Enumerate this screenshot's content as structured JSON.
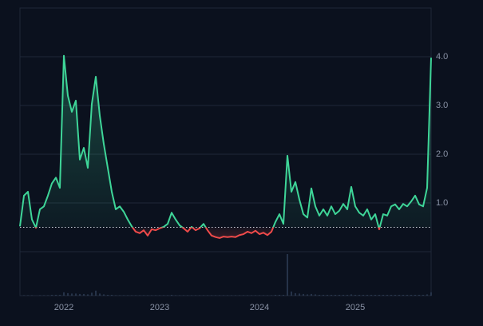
{
  "chart_data": {
    "type": "line",
    "categories": [
      null,
      null,
      null,
      null,
      null,
      null,
      null,
      null,
      null,
      null,
      null,
      "2022",
      null,
      null,
      null,
      null,
      null,
      null,
      null,
      null,
      null,
      null,
      null,
      null,
      null,
      null,
      null,
      null,
      null,
      null,
      null,
      null,
      null,
      null,
      null,
      "2023",
      null,
      null,
      null,
      null,
      null,
      null,
      null,
      null,
      null,
      null,
      null,
      null,
      null,
      null,
      null,
      null,
      null,
      null,
      null,
      null,
      null,
      null,
      null,
      null,
      "2024",
      null,
      null,
      null,
      null,
      null,
      null,
      null,
      null,
      null,
      null,
      null,
      null,
      null,
      null,
      null,
      null,
      null,
      null,
      null,
      null,
      null,
      null,
      null,
      "2025",
      null,
      null,
      null,
      null,
      null,
      null,
      null,
      null,
      null,
      null,
      null,
      null,
      null,
      null,
      null,
      null,
      null,
      null,
      null
    ],
    "values": [
      0.52,
      1.15,
      1.23,
      0.66,
      0.49,
      0.87,
      0.93,
      1.15,
      1.4,
      1.52,
      1.31,
      4.02,
      3.2,
      2.87,
      3.1,
      1.89,
      2.13,
      1.72,
      3.03,
      3.59,
      2.79,
      2.21,
      1.72,
      1.23,
      0.87,
      0.93,
      0.82,
      0.66,
      0.52,
      0.41,
      0.38,
      0.44,
      0.33,
      0.46,
      0.44,
      0.48,
      0.51,
      0.57,
      0.8,
      0.66,
      0.54,
      0.48,
      0.41,
      0.51,
      0.44,
      0.48,
      0.57,
      0.44,
      0.33,
      0.3,
      0.28,
      0.31,
      0.3,
      0.31,
      0.3,
      0.34,
      0.36,
      0.41,
      0.38,
      0.43,
      0.36,
      0.39,
      0.34,
      0.41,
      0.61,
      0.77,
      0.57,
      1.97,
      1.23,
      1.43,
      1.07,
      0.77,
      0.7,
      1.3,
      0.93,
      0.74,
      0.87,
      0.74,
      0.93,
      0.77,
      0.84,
      0.98,
      0.87,
      1.33,
      0.93,
      0.8,
      0.74,
      0.87,
      0.66,
      0.77,
      0.46,
      0.77,
      0.74,
      0.93,
      0.97,
      0.87,
      0.98,
      0.93,
      1.03,
      1.15,
      0.97,
      0.93,
      1.31,
      3.98
    ],
    "volume": [
      0,
      1,
      1,
      1,
      0,
      1,
      1,
      1,
      2,
      2,
      2,
      8,
      6,
      5,
      5,
      4,
      4,
      3,
      7,
      12,
      5,
      3,
      2,
      2,
      1,
      1,
      1,
      1,
      1,
      1,
      1,
      1,
      1,
      1,
      1,
      1,
      1,
      1,
      2,
      1,
      1,
      1,
      1,
      1,
      1,
      1,
      1,
      1,
      1,
      1,
      1,
      1,
      1,
      1,
      1,
      1,
      1,
      1,
      1,
      1,
      1,
      1,
      1,
      1,
      2,
      2,
      2,
      100,
      10,
      6,
      5,
      4,
      3,
      4,
      3,
      2,
      2,
      2,
      2,
      2,
      2,
      2,
      2,
      3,
      2,
      2,
      2,
      2,
      2,
      2,
      2,
      2,
      2,
      2,
      2,
      2,
      2,
      2,
      2,
      2,
      2,
      2,
      3,
      8
    ],
    "volume_lim": [
      0,
      100
    ],
    "baseline": 0.5,
    "ylim": [
      0,
      5
    ],
    "yticks": [
      {
        "value": 1,
        "label": "1.0"
      },
      {
        "value": 2,
        "label": "2.0"
      },
      {
        "value": 3,
        "label": "3.0"
      },
      {
        "value": 4,
        "label": "4.0"
      }
    ],
    "grid": true,
    "color": "#3ed598",
    "below_color": "#ef4a4a",
    "volume_color": "#3a4a66"
  }
}
